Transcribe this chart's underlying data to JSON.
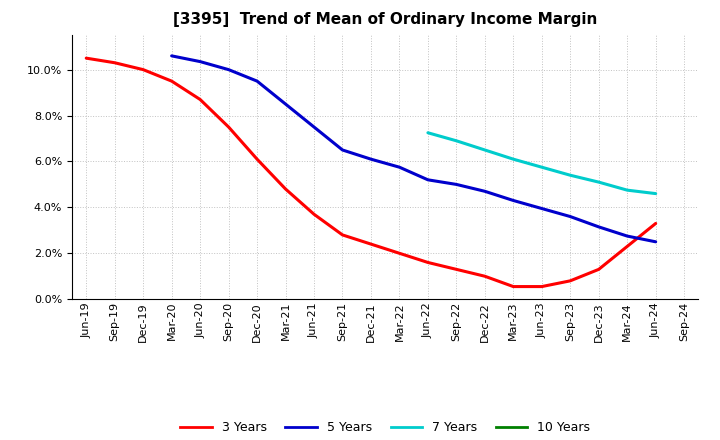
{
  "title": "[3395]  Trend of Mean of Ordinary Income Margin",
  "x_labels": [
    "Jun-19",
    "Sep-19",
    "Dec-19",
    "Mar-20",
    "Jun-20",
    "Sep-20",
    "Dec-20",
    "Mar-21",
    "Jun-21",
    "Sep-21",
    "Dec-21",
    "Mar-22",
    "Jun-22",
    "Sep-22",
    "Dec-22",
    "Mar-23",
    "Jun-23",
    "Sep-23",
    "Dec-23",
    "Mar-24",
    "Jun-24",
    "Sep-24"
  ],
  "series_3y": [
    10.5,
    10.3,
    10.0,
    9.5,
    8.7,
    7.5,
    6.1,
    4.8,
    3.7,
    2.8,
    2.4,
    2.0,
    1.6,
    1.3,
    1.0,
    0.55,
    0.55,
    0.8,
    1.3,
    2.3,
    3.3,
    null
  ],
  "series_5y_vals": [
    null,
    null,
    null,
    10.6,
    10.35,
    10.0,
    9.5,
    8.5,
    7.5,
    6.5,
    6.1,
    5.75,
    5.2,
    5.0,
    4.7,
    4.3,
    3.95,
    3.6,
    3.15,
    2.75,
    2.5,
    null
  ],
  "series_7y_vals": [
    null,
    null,
    null,
    null,
    null,
    null,
    null,
    null,
    null,
    null,
    null,
    null,
    7.25,
    6.9,
    6.5,
    6.1,
    5.75,
    5.4,
    5.1,
    4.75,
    4.6,
    null
  ],
  "series_10y_vals": [
    null,
    null,
    null,
    null,
    null,
    null,
    null,
    null,
    null,
    null,
    null,
    null,
    null,
    null,
    null,
    null,
    null,
    null,
    null,
    null,
    null,
    null
  ],
  "colors": {
    "3y": "#ff0000",
    "5y": "#0000cc",
    "7y": "#00cccc",
    "10y": "#008000"
  },
  "ylim_min": 0.0,
  "ylim_max": 0.115,
  "yticks": [
    0.0,
    0.02,
    0.04,
    0.06,
    0.08,
    0.1
  ],
  "background_color": "#ffffff",
  "grid_color": "#bbbbbb",
  "title_fontsize": 11,
  "tick_fontsize": 8,
  "legend_fontsize": 9,
  "linewidth": 2.2
}
